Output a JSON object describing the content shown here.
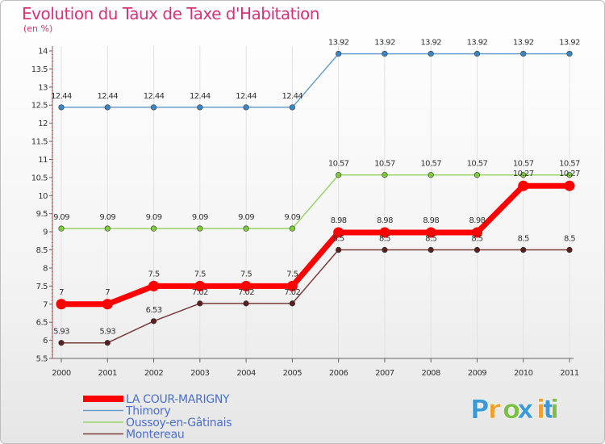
{
  "chart_data": {
    "type": "line",
    "title": "Evolution du Taux de Taxe d'Habitation",
    "subtitle": "(en %)",
    "xlabel": "",
    "ylabel": "",
    "ylim": [
      5.5,
      14
    ],
    "yticks": [
      "5.5",
      "6",
      "6.5",
      "7",
      "7.5",
      "8",
      "8.5",
      "9",
      "9.5",
      "10",
      "10.5",
      "11",
      "11.5",
      "12",
      "12.5",
      "13",
      "13.5",
      "14"
    ],
    "categories": [
      "2000",
      "2001",
      "2002",
      "2003",
      "2004",
      "2005",
      "2006",
      "2007",
      "2008",
      "2009",
      "2010",
      "2011"
    ],
    "series": [
      {
        "name": "Thimory",
        "color": "#6a9fd0",
        "marker_color": "#3b86c4",
        "values": [
          12.44,
          12.44,
          12.44,
          12.44,
          12.44,
          12.44,
          13.92,
          13.92,
          13.92,
          13.92,
          13.92,
          13.92
        ],
        "labels": [
          "12.44",
          "12.44",
          "12.44",
          "12.44",
          "12.44",
          "12.44",
          "13.92",
          "13.92",
          "13.92",
          "13.92",
          "13.92",
          "13.92"
        ]
      },
      {
        "name": "Oussoy-en-Gâtinais",
        "color": "#9ad468",
        "marker_color": "#7dcc3a",
        "values": [
          9.09,
          9.09,
          9.09,
          9.09,
          9.09,
          9.09,
          10.57,
          10.57,
          10.57,
          10.57,
          10.57,
          10.57
        ],
        "labels": [
          "9.09",
          "9.09",
          "9.09",
          "9.09",
          "9.09",
          "9.09",
          "10.57",
          "10.57",
          "10.57",
          "10.57",
          "10.57",
          "10.57"
        ]
      },
      {
        "name": "Montereau",
        "color": "#7a3b3b",
        "marker_color": "#5a1f1f",
        "values": [
          5.93,
          5.93,
          6.53,
          7.02,
          7.02,
          7.02,
          8.5,
          8.5,
          8.5,
          8.5,
          8.5,
          8.5
        ],
        "labels": [
          "5.93",
          "5.93",
          "6.53",
          "7.02",
          "7.02",
          "7.02",
          "8.5",
          "8.5",
          "8.5",
          "8.5",
          "8.5",
          "8.5"
        ]
      },
      {
        "name": "LA COUR-MARIGNY",
        "color": "#ff0000",
        "marker_color": "#ff0000",
        "values": [
          7,
          7,
          7.5,
          7.5,
          7.5,
          7.5,
          8.98,
          8.98,
          8.98,
          8.98,
          10.27,
          10.27
        ],
        "labels": [
          "7",
          "7",
          "7.5",
          "7.5",
          "7.5",
          "7.5",
          "8.98",
          "8.98",
          "8.98",
          "8.98",
          "10.27",
          "10.27"
        ]
      }
    ],
    "legend": [
      "LA COUR-MARIGNY",
      "Thimory",
      "Oussoy-en-Gâtinais",
      "Montereau"
    ],
    "legend_colors": [
      "#ff0000",
      "#6a9fd0",
      "#9ad468",
      "#7a3b3b"
    ],
    "legend_text_color": "#4a6fd0"
  },
  "logo": {
    "letters": [
      "P",
      "r",
      "o",
      "x",
      "i",
      "t",
      "i"
    ],
    "colors": [
      "#3a9ad9",
      "#f0a030",
      "#7ac143",
      "#3a9ad9",
      "#f0a030",
      "#3a9ad9",
      "#7ac143"
    ]
  }
}
